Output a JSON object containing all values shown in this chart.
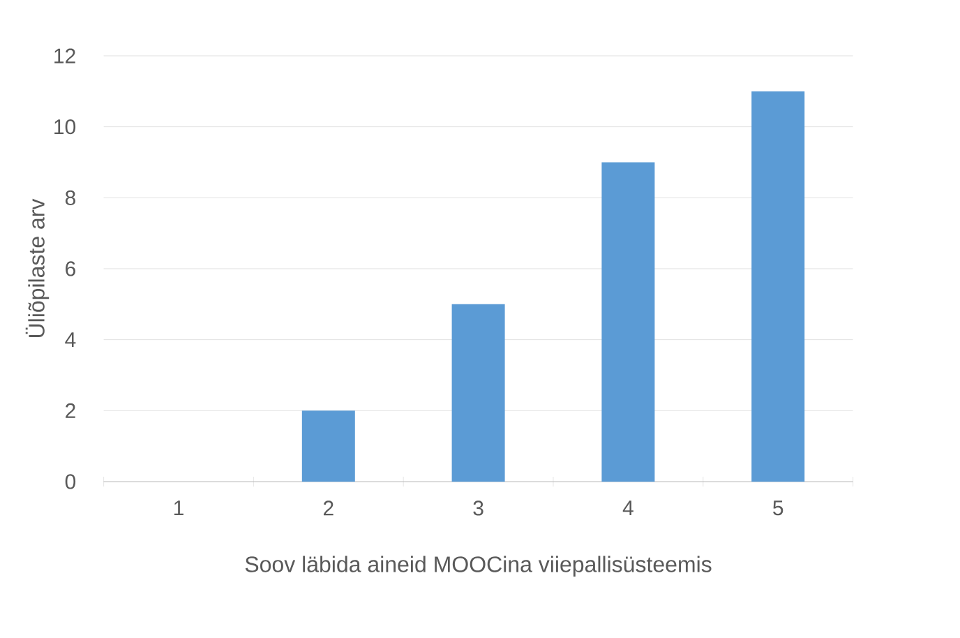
{
  "chart_data": {
    "type": "bar",
    "xlabel": "Soov läbida aineid MOOCina viiepallisüsteemis",
    "ylabel": "Üliõpilaste arv",
    "categories": [
      "1",
      "2",
      "3",
      "4",
      "5"
    ],
    "values": [
      0,
      2,
      5,
      9,
      11
    ],
    "color": "#5b9bd5",
    "ylim": [
      0,
      12
    ],
    "yticks": [
      0,
      2,
      4,
      6,
      8,
      10,
      12
    ],
    "grid": "y"
  }
}
